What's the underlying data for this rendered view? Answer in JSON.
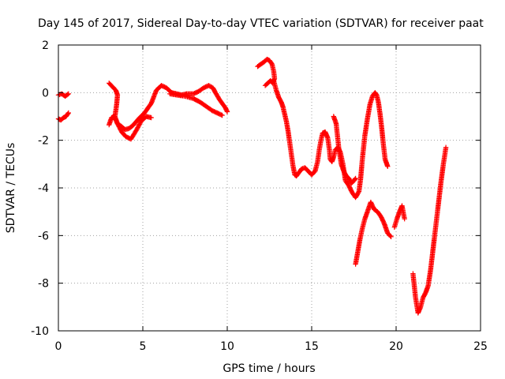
{
  "chart_data": {
    "type": "scatter",
    "title": "Day 145 of 2017, Sidereal Day-to-day VTEC variation (SDTVAR) for receiver paat",
    "xlabel": "GPS time / hours",
    "ylabel": "SDTVAR / TECUs",
    "xlim": [
      0,
      25
    ],
    "ylim": [
      -10,
      2
    ],
    "xticks": [
      0,
      5,
      10,
      15,
      20,
      25
    ],
    "yticks": [
      -10,
      -8,
      -6,
      -4,
      -2,
      0,
      2
    ],
    "grid": true,
    "marker": "+",
    "color": "#ff0000",
    "series": [
      {
        "name": "SDTVAR",
        "segments": [
          {
            "x": [
              0.0,
              0.2,
              0.4,
              0.6
            ],
            "y": [
              -0.1,
              -0.05,
              -0.15,
              -0.05
            ]
          },
          {
            "x": [
              0.0,
              0.15,
              0.3,
              0.45,
              0.6
            ],
            "y": [
              -1.1,
              -1.15,
              -1.05,
              -1.0,
              -0.85
            ]
          },
          {
            "x": [
              3.0,
              3.2,
              3.4,
              3.5,
              3.45,
              3.35,
              3.5,
              3.7,
              3.95,
              4.2,
              4.45,
              4.75,
              5.1,
              5.5,
              5.8,
              6.1,
              6.4,
              6.7,
              7.0,
              7.3,
              7.6,
              8.0,
              8.3,
              8.6,
              8.9,
              9.15,
              9.3,
              9.55,
              9.75,
              9.9,
              10.0
            ],
            "y": [
              0.4,
              0.25,
              0.1,
              -0.1,
              -0.5,
              -1.0,
              -1.3,
              -1.4,
              -1.55,
              -1.5,
              -1.35,
              -1.1,
              -0.85,
              -0.45,
              0.1,
              0.3,
              0.2,
              0.0,
              -0.05,
              -0.1,
              -0.05,
              -0.05,
              0.05,
              0.2,
              0.3,
              0.2,
              0.0,
              -0.3,
              -0.5,
              -0.65,
              -0.8
            ]
          },
          {
            "x": [
              3.0,
              3.15,
              3.3,
              3.5,
              3.75,
              4.0,
              4.3,
              4.6,
              4.9,
              5.2,
              5.5
            ],
            "y": [
              -1.35,
              -1.05,
              -1.0,
              -1.3,
              -1.65,
              -1.85,
              -1.95,
              -1.6,
              -1.2,
              -1.0,
              -1.05
            ]
          },
          {
            "x": [
              6.6,
              7.0,
              7.5,
              8.0,
              8.4,
              8.8,
              9.1,
              9.4,
              9.7
            ],
            "y": [
              -0.05,
              -0.1,
              -0.15,
              -0.25,
              -0.4,
              -0.6,
              -0.75,
              -0.85,
              -0.95
            ]
          },
          {
            "x": [
              11.8,
              12.0,
              12.2,
              12.35,
              12.5,
              12.65,
              12.75,
              12.8,
              12.7,
              12.55,
              12.4,
              12.25
            ],
            "y": [
              1.1,
              1.2,
              1.3,
              1.4,
              1.35,
              1.2,
              0.9,
              0.6,
              0.4,
              0.5,
              0.4,
              0.3
            ]
          },
          {
            "x": [
              12.75,
              12.9,
              13.05,
              13.2,
              13.3,
              13.4,
              13.5,
              13.6,
              13.7,
              13.8,
              13.9,
              14.0,
              14.1,
              14.25,
              14.4,
              14.6,
              14.8,
              15.0,
              15.2,
              15.35,
              15.45,
              15.55,
              15.65,
              15.8,
              15.95,
              16.05,
              16.1,
              16.2,
              16.3,
              16.4,
              16.55,
              16.7,
              16.85,
              17.0,
              17.2,
              17.4,
              17.6,
              17.8,
              17.9,
              18.0,
              18.15,
              18.3,
              18.45,
              18.6,
              18.75,
              18.85,
              18.95,
              19.05,
              19.15,
              19.25,
              19.35,
              19.45,
              19.5
            ],
            "y": [
              0.5,
              0.1,
              -0.2,
              -0.4,
              -0.6,
              -0.9,
              -1.2,
              -1.6,
              -2.1,
              -2.6,
              -3.1,
              -3.45,
              -3.5,
              -3.35,
              -3.2,
              -3.15,
              -3.3,
              -3.45,
              -3.3,
              -2.9,
              -2.4,
              -2.0,
              -1.7,
              -1.65,
              -1.9,
              -2.4,
              -2.8,
              -2.9,
              -2.7,
              -2.4,
              -2.3,
              -2.5,
              -3.0,
              -3.7,
              -3.9,
              -4.2,
              -4.4,
              -4.15,
              -3.6,
              -2.8,
              -1.8,
              -1.1,
              -0.5,
              -0.15,
              0.0,
              -0.1,
              -0.4,
              -0.9,
              -1.5,
              -2.2,
              -2.8,
              -3.0,
              -3.1
            ]
          },
          {
            "x": [
              16.3,
              16.45,
              16.6,
              16.75,
              16.9,
              17.05,
              17.2,
              17.35,
              17.5,
              17.6
            ],
            "y": [
              -1.0,
              -1.3,
              -2.3,
              -3.0,
              -3.3,
              -3.5,
              -3.6,
              -3.8,
              -3.7,
              -3.6
            ]
          },
          {
            "x": [
              17.6,
              17.7,
              17.85,
              18.0,
              18.15,
              18.3,
              18.5,
              18.7,
              18.9,
              19.1,
              19.3,
              19.5,
              19.7
            ],
            "y": [
              -7.2,
              -6.8,
              -6.2,
              -5.7,
              -5.3,
              -5.0,
              -4.6,
              -4.9,
              -5.0,
              -5.2,
              -5.5,
              -5.9,
              -6.05
            ]
          },
          {
            "x": [
              19.9,
              20.05,
              20.2,
              20.35,
              20.5
            ],
            "y": [
              -5.65,
              -5.3,
              -5.0,
              -4.75,
              -5.3
            ]
          },
          {
            "x": [
              21.0,
              21.15,
              21.3,
              21.45,
              21.6,
              21.75,
              21.9,
              22.05,
              22.2,
              22.35,
              22.5,
              22.65,
              22.8,
              22.95
            ],
            "y": [
              -7.6,
              -8.6,
              -9.25,
              -9.0,
              -8.6,
              -8.4,
              -8.1,
              -7.4,
              -6.5,
              -5.6,
              -4.7,
              -3.8,
              -3.0,
              -2.3
            ]
          }
        ]
      }
    ]
  }
}
